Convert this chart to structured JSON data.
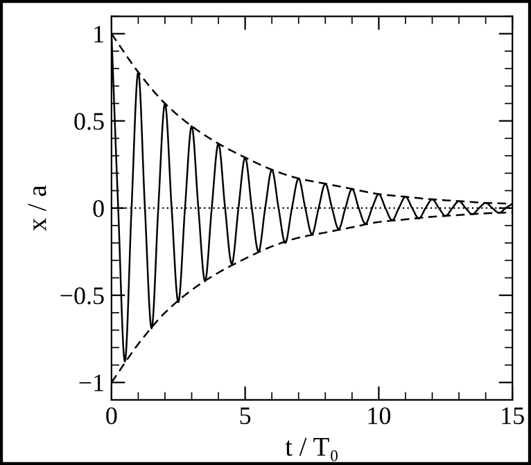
{
  "chart_data": {
    "type": "line",
    "xlabel": "t / T₀",
    "ylabel": "x / a",
    "xlim": [
      0,
      15
    ],
    "ylim": [
      -1.1,
      1.1
    ],
    "xticks": [
      0,
      5,
      10,
      15
    ],
    "yticks": [
      -1,
      -0.5,
      0,
      0.5,
      1
    ],
    "grid": false,
    "legend": false,
    "marker": "none",
    "series": [
      {
        "color": "#000000",
        "line_style": "solid",
        "x": [
          0,
          0.25,
          0.5,
          0.75,
          1,
          1.25,
          1.5,
          1.75,
          2,
          2.25,
          2.5,
          2.75,
          3,
          3.25,
          3.5,
          3.75,
          4,
          4.25,
          4.5,
          4.75,
          5,
          5.25,
          5.5,
          5.75,
          6,
          6.25,
          6.5,
          6.75,
          7,
          7.25,
          7.5,
          7.75,
          8,
          8.25,
          8.5,
          8.75,
          9,
          9.25,
          9.5,
          9.75,
          10,
          10.25,
          10.5,
          10.75,
          11,
          11.25,
          11.5,
          11.75,
          12,
          12.25,
          12.5,
          12.75,
          13,
          13.25,
          13.5,
          13.75,
          14,
          14.25,
          14.5,
          14.75,
          15
        ],
        "values": [
          1,
          0,
          -0.88,
          0,
          0.78,
          0,
          -0.69,
          0,
          0.6,
          0,
          -0.54,
          0,
          0.47,
          0,
          -0.42,
          0,
          0.37,
          0,
          -0.32,
          0,
          0.29,
          0,
          -0.25,
          0,
          0.22,
          0,
          -0.2,
          0,
          0.17,
          0,
          -0.15,
          0,
          0.14,
          0,
          -0.12,
          0,
          0.11,
          0,
          -0.09,
          0,
          0.08,
          0,
          -0.07,
          0,
          0.065,
          0,
          -0.06,
          0,
          0.05,
          0,
          -0.045,
          0,
          0.04,
          0,
          -0.035,
          0,
          0.03,
          0,
          -0.027,
          0,
          0.025
        ]
      },
      {
        "color": "#000000",
        "line_style": "dashed",
        "x": [
          0,
          1,
          2,
          3,
          4,
          5,
          6,
          7,
          8,
          9,
          10,
          11,
          12,
          13,
          14,
          15
        ],
        "values": [
          1,
          0.78,
          0.6,
          0.47,
          0.37,
          0.29,
          0.22,
          0.17,
          0.14,
          0.11,
          0.08,
          0.065,
          0.05,
          0.04,
          0.03,
          0.025
        ]
      },
      {
        "color": "#000000",
        "line_style": "dashed",
        "x": [
          0,
          1,
          2,
          3,
          4,
          5,
          6,
          7,
          8,
          9,
          10,
          11,
          12,
          13,
          14,
          15
        ],
        "values": [
          -1,
          -0.78,
          -0.6,
          -0.47,
          -0.37,
          -0.29,
          -0.22,
          -0.17,
          -0.14,
          -0.11,
          -0.08,
          -0.065,
          -0.05,
          -0.04,
          -0.03,
          -0.025
        ]
      }
    ],
    "ref_lines": [
      {
        "axis": "y",
        "value": 0,
        "line_style": "dotted",
        "color": "#000000"
      }
    ]
  }
}
